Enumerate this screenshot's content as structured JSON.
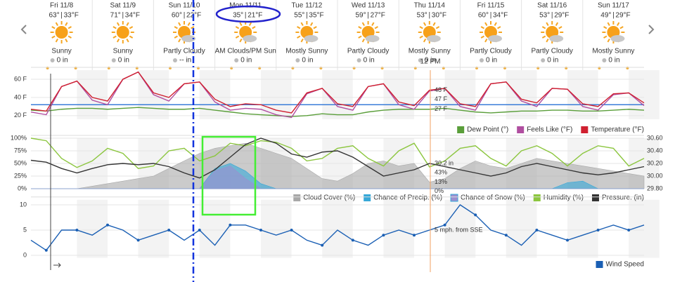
{
  "days": [
    {
      "date": "Fri 11/8",
      "high": "63°",
      "low": "33°F",
      "condition": "Sunny",
      "precip": "0 in"
    },
    {
      "date": "Sat 11/9",
      "high": "71°",
      "low": "34°F",
      "condition": "Sunny",
      "precip": "0 in"
    },
    {
      "date": "Sun 11/10",
      "high": "60°",
      "low": "22°F",
      "condition": "Partly Cloudy",
      "precip": "-- in"
    },
    {
      "date": "Mon 11/11",
      "high": "35°",
      "low": "21°F",
      "condition": "AM Clouds/PM Sun",
      "precip": "0 in"
    },
    {
      "date": "Tue 11/12",
      "high": "55°",
      "low": "35°F",
      "condition": "Mostly Sunny",
      "precip": "0 in"
    },
    {
      "date": "Wed 11/13",
      "high": "59°",
      "low": "27°F",
      "condition": "Partly Cloudy",
      "precip": "0 in"
    },
    {
      "date": "Thu 11/14",
      "high": "53°",
      "low": "30°F",
      "condition": "Mostly Sunny",
      "precip": "0 in"
    },
    {
      "date": "Fri 11/15",
      "high": "60°",
      "low": "34°F",
      "condition": "Partly Cloudy",
      "precip": "0 in"
    },
    {
      "date": "Sat 11/16",
      "high": "53°",
      "low": "29°F",
      "condition": "Partly Cloudy",
      "precip": "0 in"
    },
    {
      "date": "Sun 11/17",
      "high": "49°",
      "low": "29°F",
      "condition": "Mostly Sunny",
      "precip": "0 in"
    }
  ],
  "time_label": "12 PM",
  "chart_data": [
    {
      "type": "line",
      "ylim": [
        16,
        70
      ],
      "yticks": [
        {
          "value": 20,
          "label": "20 F"
        },
        {
          "value": 40,
          "label": "40 F"
        },
        {
          "value": 60,
          "label": "60 F"
        }
      ],
      "reference_line": 32,
      "series": [
        {
          "name": "Dew Point (°)",
          "color": "#5a9e3a",
          "readout": "27 F",
          "values": [
            26,
            25,
            27,
            28,
            28,
            27,
            28,
            29,
            28,
            27,
            27,
            28,
            26,
            24,
            22,
            21,
            20,
            19,
            20,
            22,
            21,
            21,
            24,
            26,
            27,
            27,
            27,
            28,
            26,
            24,
            23,
            24,
            25,
            25,
            26,
            26,
            25,
            25,
            26,
            27,
            26
          ]
        },
        {
          "name": "Feels Like (°F)",
          "color": "#b04ea0",
          "readout": "47 F",
          "values": [
            24,
            21,
            52,
            58,
            37,
            32,
            60,
            68,
            43,
            36,
            55,
            57,
            35,
            26,
            28,
            27,
            21,
            18,
            44,
            50,
            30,
            26,
            52,
            55,
            32,
            27,
            47,
            50,
            30,
            26,
            55,
            57,
            36,
            30,
            50,
            49,
            30,
            26,
            43,
            45,
            31
          ]
        },
        {
          "name": "Temperature (°F)",
          "color": "#d02030",
          "readout": "48 F",
          "values": [
            27,
            25,
            52,
            58,
            40,
            36,
            60,
            68,
            45,
            40,
            55,
            57,
            38,
            30,
            33,
            32,
            26,
            23,
            45,
            50,
            33,
            30,
            52,
            55,
            35,
            31,
            48,
            50,
            33,
            30,
            55,
            57,
            38,
            34,
            50,
            49,
            33,
            30,
            44,
            45,
            34
          ]
        }
      ]
    },
    {
      "type": "line",
      "ylim": [
        0,
        100
      ],
      "yticks": [
        {
          "value": 0,
          "label": "0%"
        },
        {
          "value": 25,
          "label": "25%"
        },
        {
          "value": 50,
          "label": "50%"
        },
        {
          "value": 75,
          "label": "75%"
        },
        {
          "value": 100,
          "label": "100%"
        }
      ],
      "y2lim": [
        29.8,
        30.6
      ],
      "y2ticks": [
        {
          "value": 29.8,
          "label": "29.80"
        },
        {
          "value": 30,
          "label": "30.00"
        },
        {
          "value": 30.2,
          "label": "30.20"
        },
        {
          "value": 30.4,
          "label": "30.40"
        },
        {
          "value": 30.6,
          "label": "30.60"
        }
      ],
      "series": [
        {
          "name": "Cloud Cover (%)",
          "color": "#a8a8a8",
          "fill": true,
          "readout": "13%",
          "values": [
            0,
            0,
            0,
            0,
            5,
            10,
            15,
            20,
            25,
            40,
            55,
            70,
            80,
            85,
            90,
            80,
            70,
            60,
            40,
            20,
            15,
            30,
            50,
            55,
            45,
            50,
            13,
            20,
            40,
            55,
            45,
            40,
            50,
            60,
            55,
            50,
            45,
            40,
            35,
            30,
            25
          ]
        },
        {
          "name": "Chance of Precip. (%)",
          "color": "#36a8d8",
          "fill": true,
          "readout": "0%",
          "values": [
            0,
            0,
            0,
            0,
            0,
            0,
            0,
            0,
            0,
            0,
            0,
            0,
            40,
            50,
            35,
            10,
            0,
            0,
            0,
            0,
            0,
            0,
            0,
            0,
            0,
            0,
            0,
            0,
            0,
            0,
            0,
            0,
            0,
            0,
            0,
            12,
            15,
            0,
            0,
            0,
            0
          ]
        },
        {
          "name": "Chance of Snow (%)",
          "color": "#9b8fd0",
          "fill": true,
          "values": [
            0,
            0,
            0,
            0,
            0,
            0,
            0,
            0,
            0,
            0,
            0,
            0,
            35,
            45,
            20,
            0,
            0,
            0,
            0,
            0,
            0,
            0,
            0,
            0,
            0,
            0,
            0,
            0,
            0,
            0,
            0,
            0,
            0,
            0,
            0,
            0,
            0,
            0,
            0,
            0,
            0
          ]
        },
        {
          "name": "Humidity (%)",
          "color": "#8cc63f",
          "readout": "43%",
          "values": [
            100,
            95,
            60,
            42,
            55,
            80,
            70,
            40,
            45,
            75,
            80,
            55,
            65,
            90,
            85,
            95,
            92,
            80,
            55,
            60,
            80,
            85,
            60,
            45,
            75,
            90,
            43,
            55,
            80,
            85,
            60,
            45,
            75,
            85,
            70,
            45,
            70,
            85,
            80,
            45,
            60
          ]
        },
        {
          "name": "Pressure. (in)",
          "color": "#333333",
          "axis": "y2",
          "readout": "30.2 in",
          "values": [
            30.25,
            30.22,
            30.12,
            30.05,
            30.12,
            30.18,
            30.2,
            30.18,
            30.2,
            30.15,
            30.05,
            29.97,
            30.1,
            30.3,
            30.5,
            30.6,
            30.52,
            30.35,
            30.3,
            30.38,
            30.4,
            30.3,
            30.15,
            30.0,
            30.05,
            30.1,
            30.2,
            30.15,
            30.1,
            30.05,
            30.0,
            30.05,
            30.15,
            30.2,
            30.15,
            30.1,
            30.05,
            30.02,
            30.05,
            30.1,
            30.15
          ]
        }
      ]
    },
    {
      "type": "line",
      "ylim": [
        -0.5,
        11
      ],
      "yticks": [
        0,
        5,
        10
      ],
      "series": [
        {
          "name": "Wind Speed",
          "color": "#1a5fb4",
          "readout": "5 mph. from SSE",
          "values": [
            3,
            1,
            5,
            5,
            4,
            6,
            5,
            3,
            4,
            5,
            3,
            5,
            2,
            6,
            6,
            5,
            4,
            5,
            3,
            2,
            5,
            3,
            2,
            4,
            5,
            4,
            5,
            6,
            10,
            8,
            5,
            4,
            2,
            5,
            4,
            3,
            4,
            5,
            6,
            5,
            6
          ]
        }
      ]
    }
  ]
}
